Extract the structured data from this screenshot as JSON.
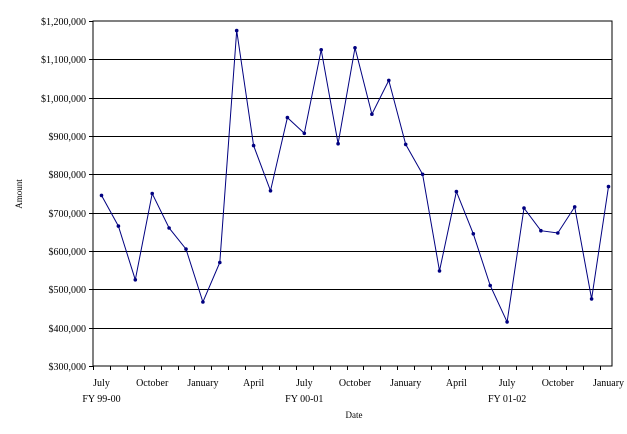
{
  "chart_data": {
    "type": "line",
    "xlabel": "Date",
    "ylabel": "Amount",
    "ylim": [
      300000,
      1200000
    ],
    "y_ticks": [
      300000,
      400000,
      500000,
      600000,
      700000,
      800000,
      900000,
      1000000,
      1100000,
      1200000
    ],
    "y_tick_labels": [
      "$300,000",
      "$400,000",
      "$500,000",
      "$600,000",
      "$700,000",
      "$800,000",
      "$900,000",
      "$1,000,000",
      "$1,100,000",
      "$1,200,000"
    ],
    "grid": "horizontal",
    "line_color": "#000080",
    "x": [
      "Jul 1999",
      "Aug 1999",
      "Sep 1999",
      "Oct 1999",
      "Nov 1999",
      "Dec 1999",
      "Jan 2000",
      "Feb 2000",
      "Mar 2000",
      "Apr 2000",
      "May 2000",
      "Jun 2000",
      "Jul 2000",
      "Aug 2000",
      "Sep 2000",
      "Oct 2000",
      "Nov 2000",
      "Dec 2000",
      "Jan 2001",
      "Feb 2001",
      "Mar 2001",
      "Apr 2001",
      "May 2001",
      "Jun 2001",
      "Jul 2001",
      "Aug 2001",
      "Sep 2001",
      "Oct 2001",
      "Nov 2001",
      "Dec 2001",
      "Jan 2002"
    ],
    "x_tick_labels": [
      {
        "label": "July",
        "index": 0
      },
      {
        "label": "October",
        "index": 3
      },
      {
        "label": "January",
        "index": 6
      },
      {
        "label": "April",
        "index": 9
      },
      {
        "label": "July",
        "index": 12
      },
      {
        "label": "October",
        "index": 15
      },
      {
        "label": "January",
        "index": 18
      },
      {
        "label": "April",
        "index": 21
      },
      {
        "label": "July",
        "index": 24
      },
      {
        "label": "October",
        "index": 27
      },
      {
        "label": "January",
        "index": 30
      }
    ],
    "fiscal_year_labels": [
      {
        "label": "FY 99-00",
        "index": 0
      },
      {
        "label": "FY 00-01",
        "index": 12
      },
      {
        "label": "FY 01-02",
        "index": 24
      }
    ],
    "series": [
      {
        "values": [
          745000,
          665000,
          525000,
          750000,
          660000,
          605000,
          467000,
          570000,
          1175000,
          875000,
          757000,
          948000,
          907000,
          1125000,
          880000,
          1130000,
          957000,
          1045000,
          878000,
          800000,
          548000,
          755000,
          645000,
          510000,
          415000,
          712000,
          653000,
          647000,
          715000,
          475000,
          768000
        ]
      }
    ]
  }
}
